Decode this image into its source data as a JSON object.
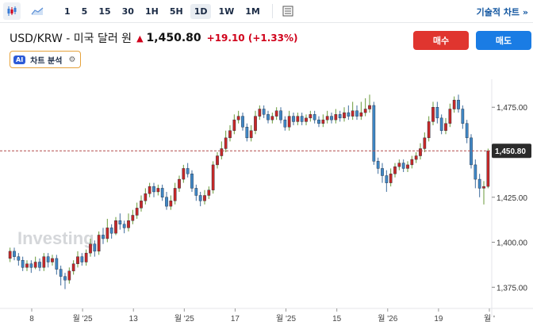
{
  "toolbar": {
    "timeframes": [
      "1",
      "5",
      "15",
      "30",
      "1H",
      "5H",
      "1D",
      "1W",
      "1M"
    ],
    "active_timeframe": "1D",
    "technical_link": "기술적 차트 »"
  },
  "header": {
    "symbol": "USD/KRW - 미국 달러 원",
    "price": "1,450.80",
    "change": "+19.10 (+1.33%)",
    "buy_label": "매수",
    "sell_label": "매도",
    "ai_label": "AI",
    "ai_text": "차트 분석"
  },
  "chart_data": {
    "type": "candlestick",
    "watermark": "Investing",
    "current_price_label": "1,450.80",
    "ylim": [
      1365,
      1487
    ],
    "y_ticks": [
      "1,475.00",
      "1,450.00",
      "1,425.00",
      "1,400.00",
      "1,375.00"
    ],
    "x_ticks": [
      "8",
      "월 '25",
      "13",
      "월 '25",
      "17",
      "월 '25",
      "15",
      "월 '26",
      "19",
      "월 '"
    ],
    "colors": {
      "up": "#c62828",
      "down": "#3f86c4",
      "wick_up": "#6a9a3a",
      "wick_down": "#3f6e9e"
    },
    "candles": [
      [
        1391,
        1395,
        1389,
        1397
      ],
      [
        1395,
        1392,
        1390,
        1397
      ],
      [
        1392,
        1390,
        1387,
        1394
      ],
      [
        1390,
        1386,
        1384,
        1392
      ],
      [
        1386,
        1388,
        1384,
        1390
      ],
      [
        1388,
        1386,
        1383,
        1390
      ],
      [
        1386,
        1389,
        1385,
        1392
      ],
      [
        1389,
        1386,
        1384,
        1391
      ],
      [
        1386,
        1392,
        1384,
        1394
      ],
      [
        1392,
        1389,
        1386,
        1394
      ],
      [
        1389,
        1391,
        1387,
        1393
      ],
      [
        1391,
        1385,
        1382,
        1393
      ],
      [
        1385,
        1381,
        1376,
        1387
      ],
      [
        1381,
        1379,
        1374,
        1383
      ],
      [
        1379,
        1384,
        1377,
        1386
      ],
      [
        1384,
        1388,
        1382,
        1390
      ],
      [
        1388,
        1392,
        1386,
        1395
      ],
      [
        1392,
        1389,
        1387,
        1394
      ],
      [
        1389,
        1394,
        1387,
        1396
      ],
      [
        1394,
        1399,
        1392,
        1402
      ],
      [
        1399,
        1395,
        1392,
        1401
      ],
      [
        1395,
        1404,
        1393,
        1406
      ],
      [
        1404,
        1402,
        1399,
        1408
      ],
      [
        1402,
        1408,
        1400,
        1413
      ],
      [
        1408,
        1405,
        1402,
        1410
      ],
      [
        1405,
        1412,
        1404,
        1414
      ],
      [
        1412,
        1410,
        1407,
        1416
      ],
      [
        1410,
        1408,
        1405,
        1412
      ],
      [
        1408,
        1412,
        1406,
        1416
      ],
      [
        1412,
        1415,
        1410,
        1418
      ],
      [
        1415,
        1419,
        1413,
        1422
      ],
      [
        1419,
        1423,
        1417,
        1426
      ],
      [
        1423,
        1427,
        1421,
        1430
      ],
      [
        1427,
        1431,
        1425,
        1433
      ],
      [
        1431,
        1428,
        1425,
        1433
      ],
      [
        1428,
        1430,
        1426,
        1432
      ],
      [
        1430,
        1425,
        1423,
        1432
      ],
      [
        1425,
        1420,
        1418,
        1428
      ],
      [
        1420,
        1423,
        1418,
        1426
      ],
      [
        1423,
        1430,
        1421,
        1433
      ],
      [
        1430,
        1435,
        1428,
        1437
      ],
      [
        1435,
        1441,
        1433,
        1443
      ],
      [
        1441,
        1438,
        1436,
        1444
      ],
      [
        1438,
        1430,
        1428,
        1440
      ],
      [
        1430,
        1426,
        1423,
        1432
      ],
      [
        1426,
        1423,
        1420,
        1428
      ],
      [
        1423,
        1426,
        1421,
        1429
      ],
      [
        1426,
        1429,
        1424,
        1431
      ],
      [
        1429,
        1443,
        1427,
        1445
      ],
      [
        1443,
        1448,
        1441,
        1450
      ],
      [
        1448,
        1452,
        1446,
        1456
      ],
      [
        1452,
        1458,
        1450,
        1462
      ],
      [
        1458,
        1462,
        1456,
        1465
      ],
      [
        1462,
        1468,
        1460,
        1471
      ],
      [
        1468,
        1470,
        1466,
        1473
      ],
      [
        1470,
        1464,
        1462,
        1472
      ],
      [
        1464,
        1458,
        1456,
        1466
      ],
      [
        1458,
        1462,
        1456,
        1465
      ],
      [
        1462,
        1470,
        1460,
        1473
      ],
      [
        1470,
        1474,
        1468,
        1476
      ],
      [
        1474,
        1471,
        1469,
        1476
      ],
      [
        1471,
        1468,
        1466,
        1473
      ],
      [
        1468,
        1470,
        1466,
        1472
      ],
      [
        1470,
        1473,
        1468,
        1475
      ],
      [
        1473,
        1468,
        1466,
        1475
      ],
      [
        1468,
        1464,
        1462,
        1470
      ],
      [
        1464,
        1470,
        1462,
        1473
      ],
      [
        1470,
        1467,
        1465,
        1472
      ],
      [
        1467,
        1470,
        1465,
        1472
      ],
      [
        1470,
        1467,
        1465,
        1472
      ],
      [
        1467,
        1469,
        1465,
        1471
      ],
      [
        1469,
        1471,
        1467,
        1473
      ],
      [
        1471,
        1468,
        1466,
        1473
      ],
      [
        1468,
        1466,
        1464,
        1470
      ],
      [
        1466,
        1468,
        1464,
        1471
      ],
      [
        1468,
        1470,
        1466,
        1473
      ],
      [
        1470,
        1468,
        1466,
        1472
      ],
      [
        1468,
        1471,
        1466,
        1474
      ],
      [
        1471,
        1469,
        1467,
        1473
      ],
      [
        1469,
        1472,
        1467,
        1475
      ],
      [
        1472,
        1470,
        1468,
        1476
      ],
      [
        1470,
        1473,
        1468,
        1478
      ],
      [
        1473,
        1470,
        1468,
        1476
      ],
      [
        1470,
        1472,
        1468,
        1478
      ],
      [
        1472,
        1474,
        1470,
        1480
      ],
      [
        1474,
        1476,
        1472,
        1482
      ],
      [
        1476,
        1445,
        1443,
        1478
      ],
      [
        1445,
        1441,
        1438,
        1447
      ],
      [
        1441,
        1437,
        1433,
        1444
      ],
      [
        1437,
        1433,
        1428,
        1440
      ],
      [
        1433,
        1438,
        1431,
        1441
      ],
      [
        1438,
        1442,
        1436,
        1444
      ],
      [
        1442,
        1444,
        1440,
        1446
      ],
      [
        1444,
        1441,
        1439,
        1446
      ],
      [
        1441,
        1443,
        1439,
        1445
      ],
      [
        1443,
        1446,
        1441,
        1448
      ],
      [
        1446,
        1448,
        1444,
        1450
      ],
      [
        1448,
        1452,
        1446,
        1455
      ],
      [
        1452,
        1458,
        1450,
        1461
      ],
      [
        1458,
        1467,
        1456,
        1470
      ],
      [
        1467,
        1475,
        1465,
        1478
      ],
      [
        1475,
        1469,
        1466,
        1478
      ],
      [
        1469,
        1462,
        1460,
        1471
      ],
      [
        1462,
        1466,
        1460,
        1469
      ],
      [
        1466,
        1474,
        1464,
        1477
      ],
      [
        1474,
        1479,
        1472,
        1481
      ],
      [
        1479,
        1474,
        1472,
        1482
      ],
      [
        1474,
        1466,
        1463,
        1476
      ],
      [
        1466,
        1458,
        1455,
        1468
      ],
      [
        1458,
        1443,
        1441,
        1460
      ],
      [
        1443,
        1435,
        1430,
        1446
      ],
      [
        1435,
        1430,
        1425,
        1438
      ],
      [
        1430,
        1431,
        1421,
        1434
      ],
      [
        1431,
        1450.8,
        1430,
        1452
      ]
    ]
  }
}
